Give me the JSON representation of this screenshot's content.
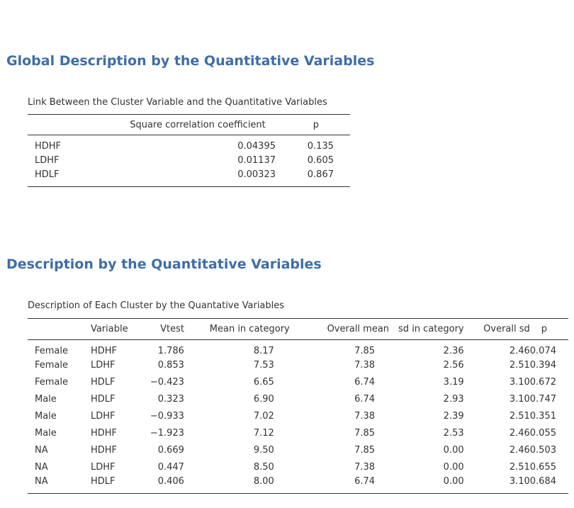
{
  "global": {
    "heading": "Global Description by the Quantitative Variables",
    "caption": "Link Between the Cluster Variable and the Quantitative Variables",
    "columns": [
      "",
      "Square correlation coefficient",
      "p"
    ],
    "rows": [
      [
        "HDHF",
        "0.04395",
        "0.135"
      ],
      [
        "LDHF",
        "0.01137",
        "0.605"
      ],
      [
        "HDLF",
        "0.00323",
        "0.867"
      ]
    ]
  },
  "description": {
    "heading": "Description by the Quantitative Variables",
    "caption": "Description of Each Cluster by the Quantative Variables",
    "columns": [
      "",
      "Variable",
      "Vtest",
      "Mean in category",
      "Overall mean",
      "sd in category",
      "Overall sd",
      "p"
    ],
    "rows": [
      [
        "Female",
        "HDHF",
        "1.786",
        "8.17",
        "7.85",
        "2.36",
        "2.46",
        "0.074"
      ],
      [
        "Female",
        "LDHF",
        "0.853",
        "7.53",
        "7.38",
        "2.56",
        "2.51",
        "0.394"
      ],
      [
        "Female",
        "HDLF",
        "−0.423",
        "6.65",
        "6.74",
        "3.19",
        "3.10",
        "0.672"
      ],
      [
        "Male",
        "HDLF",
        "0.323",
        "6.90",
        "6.74",
        "2.93",
        "3.10",
        "0.747"
      ],
      [
        "Male",
        "LDHF",
        "−0.933",
        "7.02",
        "7.38",
        "2.39",
        "2.51",
        "0.351"
      ],
      [
        "Male",
        "HDHF",
        "−1.923",
        "7.12",
        "7.85",
        "2.53",
        "2.46",
        "0.055"
      ],
      [
        "NA",
        "HDHF",
        "0.669",
        "9.50",
        "7.85",
        "0.00",
        "2.46",
        "0.503"
      ],
      [
        "NA",
        "LDHF",
        "0.447",
        "8.50",
        "7.38",
        "0.00",
        "2.51",
        "0.655"
      ],
      [
        "NA",
        "HDLF",
        "0.406",
        "8.00",
        "6.74",
        "0.00",
        "3.10",
        "0.684"
      ]
    ]
  }
}
